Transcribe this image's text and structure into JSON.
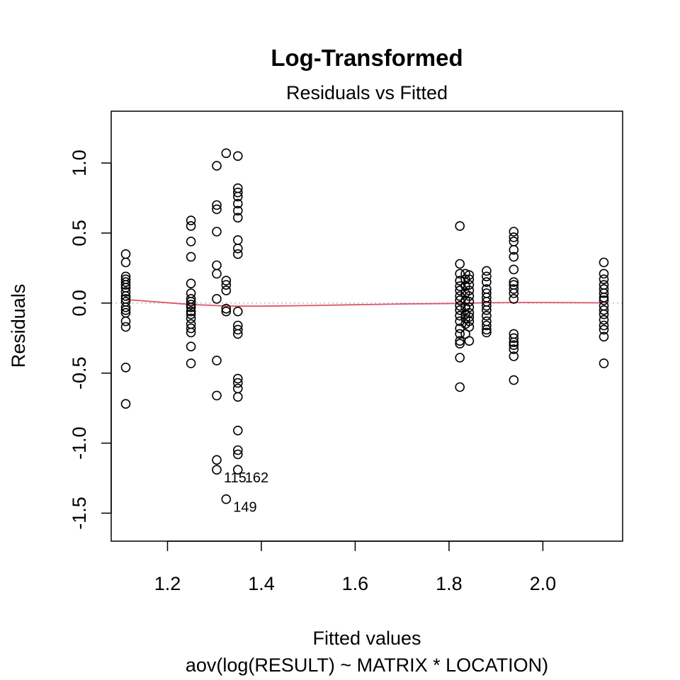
{
  "chart_data": {
    "type": "scatter",
    "title": "Log-Transformed",
    "subtitle": "Residuals vs Fitted",
    "xlabel": "Fitted values",
    "caption": "aov(log(RESULT) ~ MATRIX * LOCATION)",
    "ylabel": "Residuals",
    "xlim": [
      1.08,
      2.17
    ],
    "ylim": [
      -1.7,
      1.37
    ],
    "x_ticks": [
      1.2,
      1.4,
      1.6,
      1.8,
      2.0
    ],
    "x_tick_labels": [
      "1.2",
      "1.4",
      "1.6",
      "1.8",
      "2.0"
    ],
    "y_ticks": [
      -1.5,
      -1.0,
      -0.5,
      0.0,
      0.5,
      1.0
    ],
    "y_tick_labels": [
      "-1.5",
      "-1.0",
      "-0.5",
      "0.0",
      "0.5",
      "1.0"
    ],
    "grid": false,
    "reference_line": {
      "y": 0,
      "color": "#BEBEBE",
      "style": "dotted"
    },
    "smooth_color": "#DF536B",
    "point_color": "#000000",
    "groups": [
      {
        "x": 1.111,
        "residuals": [
          0.35,
          0.29,
          0.19,
          0.17,
          0.15,
          0.13,
          0.11,
          0.08,
          0.05,
          0.03,
          0.01,
          -0.03,
          -0.05,
          -0.07,
          -0.13,
          -0.17,
          -0.46,
          -0.72
        ]
      },
      {
        "x": 1.25,
        "residuals": [
          0.59,
          0.55,
          0.44,
          0.33,
          0.14,
          0.07,
          0.03,
          0.01,
          -0.01,
          -0.03,
          -0.06,
          -0.08,
          -0.11,
          -0.15,
          -0.18,
          -0.21,
          -0.31,
          -0.43
        ]
      },
      {
        "x": 1.305,
        "residuals": [
          0.98,
          0.7,
          0.67,
          0.51,
          0.27,
          0.21,
          0.03,
          -0.41,
          -0.66,
          -1.12,
          -1.19
        ]
      },
      {
        "x": 1.325,
        "residuals": [
          1.07,
          0.16,
          0.13,
          0.09,
          -0.04,
          -0.06,
          -1.4
        ]
      },
      {
        "x": 1.35,
        "residuals": [
          1.05,
          0.82,
          0.79,
          0.76,
          0.71,
          0.66,
          0.61,
          0.45,
          0.39,
          0.35,
          -0.06,
          -0.16,
          -0.19,
          -0.22,
          -0.54,
          -0.57,
          -0.61,
          -0.67,
          -0.91,
          -1.05,
          -1.08,
          -1.19
        ]
      },
      {
        "x": 1.823,
        "residuals": [
          0.55,
          0.28,
          0.21,
          0.16,
          0.12,
          0.09,
          0.05,
          0.02,
          -0.02,
          -0.05,
          -0.09,
          -0.13,
          -0.18,
          -0.22,
          -0.27,
          -0.29,
          -0.39,
          -0.6
        ]
      },
      {
        "x": 1.835,
        "residuals": [
          0.21,
          0.17,
          0.12,
          0.07,
          0.02,
          -0.03,
          -0.08,
          -0.11,
          -0.15,
          -0.22
        ]
      },
      {
        "x": 1.843,
        "residuals": [
          0.2,
          0.17,
          0.13,
          0.09,
          0.05,
          0.01,
          -0.03,
          -0.07,
          -0.1,
          -0.13,
          -0.17,
          -0.27
        ]
      },
      {
        "x": 1.88,
        "residuals": [
          0.23,
          0.19,
          0.15,
          0.1,
          0.07,
          0.04,
          0.01,
          -0.02,
          -0.05,
          -0.09,
          -0.13,
          -0.16,
          -0.19,
          -0.21
        ]
      },
      {
        "x": 1.938,
        "residuals": [
          0.51,
          0.47,
          0.44,
          0.38,
          0.33,
          0.24,
          0.15,
          0.13,
          0.1,
          0.07,
          0.03,
          -0.22,
          -0.25,
          -0.28,
          -0.3,
          -0.33,
          -0.38,
          -0.55
        ]
      },
      {
        "x": 2.13,
        "residuals": [
          0.29,
          0.21,
          0.17,
          0.13,
          0.1,
          0.07,
          0.04,
          0.02,
          -0.02,
          -0.05,
          -0.08,
          -0.12,
          -0.16,
          -0.19,
          -0.24,
          -0.43
        ]
      }
    ],
    "smooth_curve": {
      "x": [
        1.111,
        1.25,
        1.305,
        1.325,
        1.35,
        1.4,
        1.5,
        1.6,
        1.7,
        1.823,
        1.843,
        1.88,
        1.938,
        2.0,
        2.13
      ],
      "y": [
        0.025,
        -0.01,
        -0.018,
        -0.022,
        -0.022,
        -0.022,
        -0.018,
        -0.012,
        -0.006,
        -0.002,
        0.0,
        0.002,
        0.004,
        0.004,
        0.002
      ]
    },
    "point_labels": [
      {
        "label": "115",
        "x": 1.305,
        "y": -1.19
      },
      {
        "label": "162",
        "x": 1.35,
        "y": -1.19
      },
      {
        "label": "149",
        "x": 1.325,
        "y": -1.4
      }
    ]
  }
}
